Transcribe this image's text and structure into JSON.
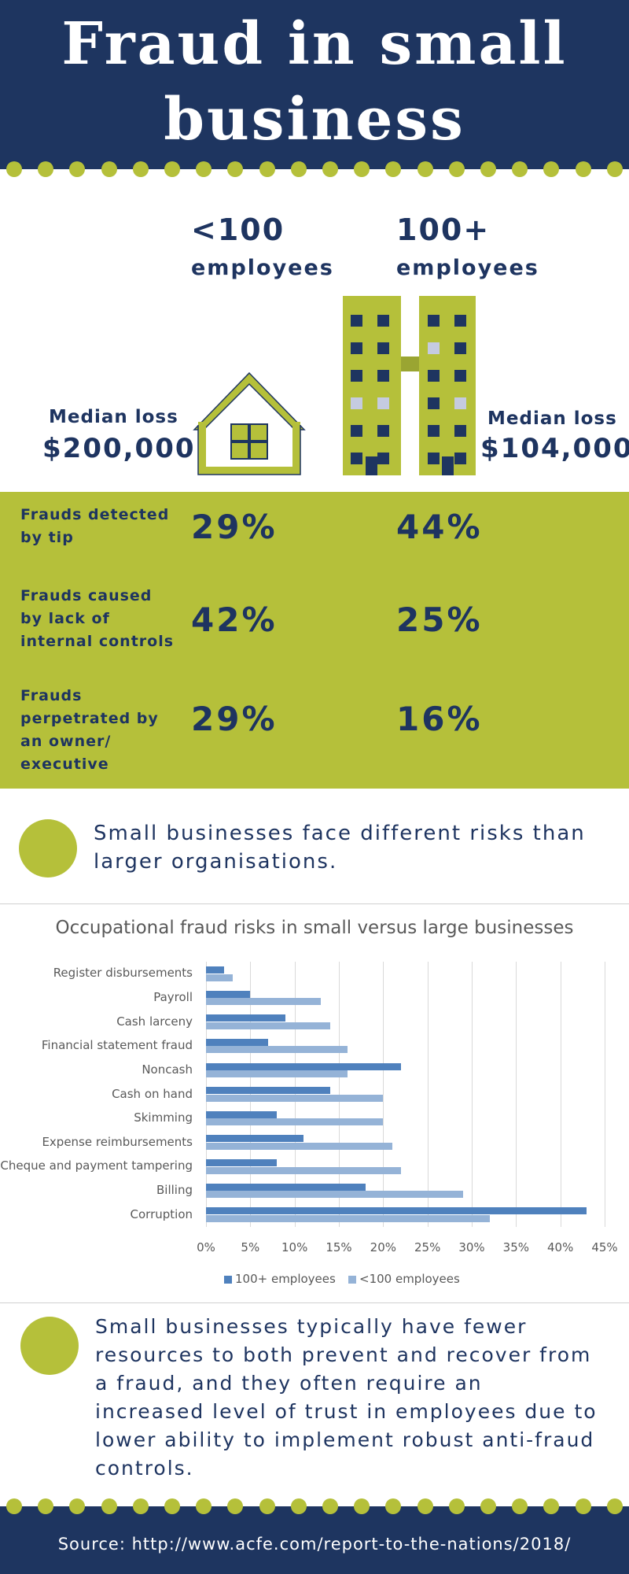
{
  "title": "Fraud in small business",
  "columns": {
    "small": {
      "head": "<100",
      "sub": "employees",
      "median_label": "Median loss",
      "median_value": "$200,000"
    },
    "large": {
      "head": "100+",
      "sub": "employees",
      "median_label": "Median loss",
      "median_value": "$104,000"
    }
  },
  "stats": [
    {
      "label": "Frauds detected by tip",
      "small": "29%",
      "large": "44%"
    },
    {
      "label": "Frauds caused by lack of internal controls",
      "small": "42%",
      "large": "25%"
    },
    {
      "label": "Frauds perpetrated by an owner/ executive",
      "small": "29%",
      "large": "16%"
    }
  ],
  "statement1": "Small businesses face different risks than larger organisations.",
  "statement2": "Small businesses typically have fewer resources to both prevent and recover from a fraud, and they often require an increased level of trust in employees due to lower ability to implement robust anti-fraud controls.",
  "source": "Source: http://www.acfe.com/report-to-the-nations/2018/",
  "colors": {
    "navy": "#1e3560",
    "green": "#b5c03a",
    "series_large": "#4f81bd",
    "series_small": "#95b3d7"
  },
  "chart_data": {
    "type": "bar",
    "orientation": "horizontal",
    "title": "Occupational fraud risks in small versus large businesses",
    "categories": [
      "Register disbursements",
      "Payroll",
      "Cash larceny",
      "Financial statement fraud",
      "Noncash",
      "Cash on hand",
      "Skimming",
      "Expense reimbursements",
      "Cheque and payment tampering",
      "Billing",
      "Corruption"
    ],
    "series": [
      {
        "name": "100+ employees",
        "values": [
          2,
          5,
          9,
          7,
          22,
          14,
          8,
          11,
          8,
          18,
          43
        ]
      },
      {
        "name": "<100 employees",
        "values": [
          3,
          13,
          14,
          16,
          16,
          20,
          20,
          21,
          22,
          29,
          32
        ]
      }
    ],
    "xlim": [
      0,
      45
    ],
    "xticks": [
      "0%",
      "5%",
      "10%",
      "15%",
      "20%",
      "25%",
      "30%",
      "35%",
      "40%",
      "45%"
    ],
    "grid": true,
    "legend": "bottom"
  }
}
